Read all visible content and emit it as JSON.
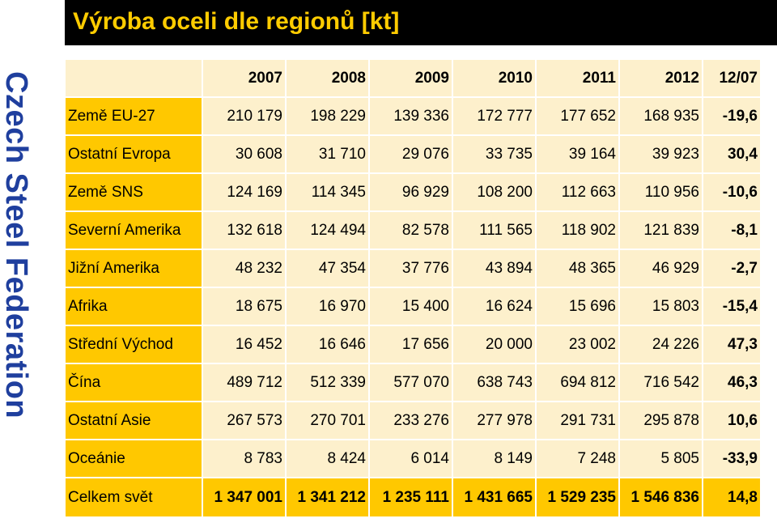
{
  "side_title": "Czech Steel Federation",
  "title": "Výroba oceli dle regionů [kt]",
  "columns": [
    "2007",
    "2008",
    "2009",
    "2010",
    "2011",
    "2012",
    "12/07"
  ],
  "rows": [
    {
      "label": "Země EU-27",
      "values": [
        "210 179",
        "198 229",
        "139 336",
        "172 777",
        "177 652",
        "168 935"
      ],
      "change": "-19,6"
    },
    {
      "label": "Ostatní Evropa",
      "values": [
        "30 608",
        "31 710",
        "29 076",
        "33 735",
        "39 164",
        "39 923"
      ],
      "change": "30,4"
    },
    {
      "label": "Země SNS",
      "values": [
        "124 169",
        "114 345",
        "96 929",
        "108 200",
        "112 663",
        "110 956"
      ],
      "change": "-10,6"
    },
    {
      "label": "Severní Amerika",
      "values": [
        "132 618",
        "124 494",
        "82 578",
        "111 565",
        "118 902",
        "121 839"
      ],
      "change": "-8,1"
    },
    {
      "label": "Jižní Amerika",
      "values": [
        "48 232",
        "47 354",
        "37 776",
        "43 894",
        "48 365",
        "46 929"
      ],
      "change": "-2,7"
    },
    {
      "label": "Afrika",
      "values": [
        "18 675",
        "16 970",
        "15 400",
        "16 624",
        "15 696",
        "15 803"
      ],
      "change": "-15,4"
    },
    {
      "label": "Střední Východ",
      "values": [
        "16 452",
        "16 646",
        "17 656",
        "20 000",
        "23 002",
        "24 226"
      ],
      "change": "47,3"
    },
    {
      "label": "Čína",
      "values": [
        "489 712",
        "512 339",
        "577 070",
        "638 743",
        "694 812",
        "716 542"
      ],
      "change": "46,3"
    },
    {
      "label": "Ostatní Asie",
      "values": [
        "267 573",
        "270 701",
        "233 276",
        "277 978",
        "291 731",
        "295 878"
      ],
      "change": "10,6"
    },
    {
      "label": "Oceánie",
      "values": [
        "8 783",
        "8 424",
        "6 014",
        "8 149",
        "7 248",
        "5 805"
      ],
      "change": "-33,9"
    },
    {
      "label": "Celkem svět",
      "values": [
        "1 347 001",
        "1 341 212",
        "1 235 111",
        "1 431 665",
        "1 529 235",
        "1 546 836"
      ],
      "change": "14,8"
    }
  ],
  "colors": {
    "title_text": "#ffcc00",
    "title_bg": "#000000",
    "side_title": "#1f3f9e",
    "label_bg": "#ffc800",
    "cell_bg": "#fdf0cc"
  }
}
